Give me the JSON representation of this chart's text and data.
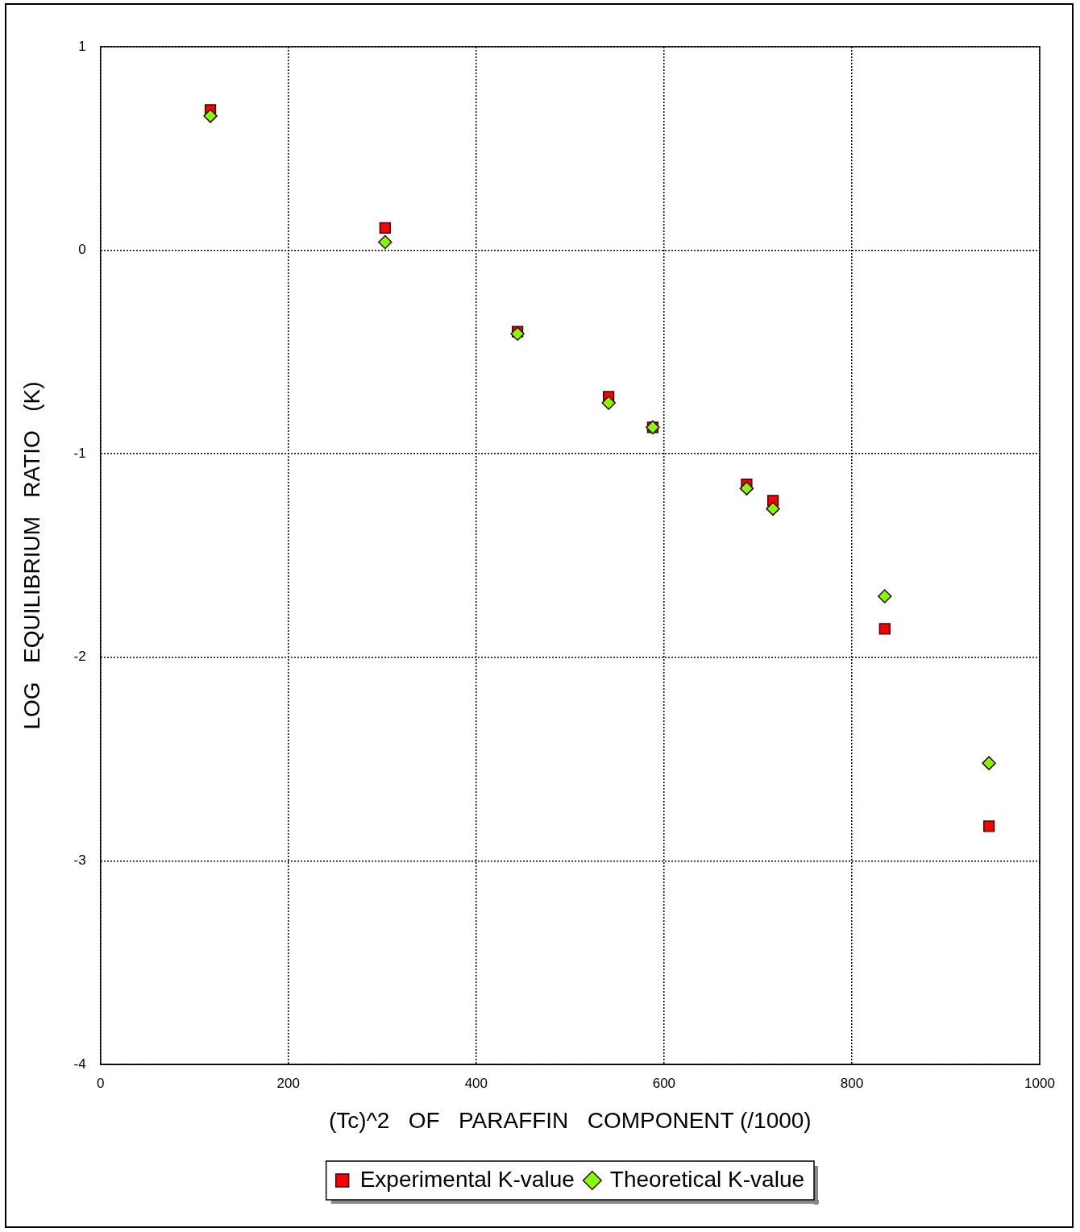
{
  "chart_data": {
    "type": "scatter",
    "xlabel": "(Tc)^2   OF   PARAFFIN   COMPONENT (/1000)",
    "ylabel": "LOG   EQUILIBRIUM   RATIO   (K)",
    "xlim": [
      0,
      1000
    ],
    "xticks": [
      0,
      200,
      400,
      600,
      800,
      1000
    ],
    "ylim": [
      -4,
      1
    ],
    "yticks": [
      -4,
      -3,
      -2,
      -1,
      0,
      1
    ],
    "grid": true,
    "legend": "bottom",
    "series": [
      {
        "name": "Experimental K-value",
        "color": "#ff0000",
        "marker": "square",
        "x": [
          117,
          303,
          444,
          541,
          588,
          688,
          716,
          835,
          946
        ],
        "values": [
          0.69,
          0.11,
          -0.4,
          -0.72,
          -0.87,
          -1.15,
          -1.23,
          -1.86,
          -2.83
        ]
      },
      {
        "name": "Theoretical K-value",
        "color": "#80ff00",
        "marker": "diamond",
        "x": [
          117,
          303,
          444,
          541,
          588,
          688,
          716,
          835,
          946
        ],
        "values": [
          0.66,
          0.04,
          -0.41,
          -0.75,
          -0.87,
          -1.17,
          -1.27,
          -1.7,
          -2.52
        ]
      }
    ]
  }
}
